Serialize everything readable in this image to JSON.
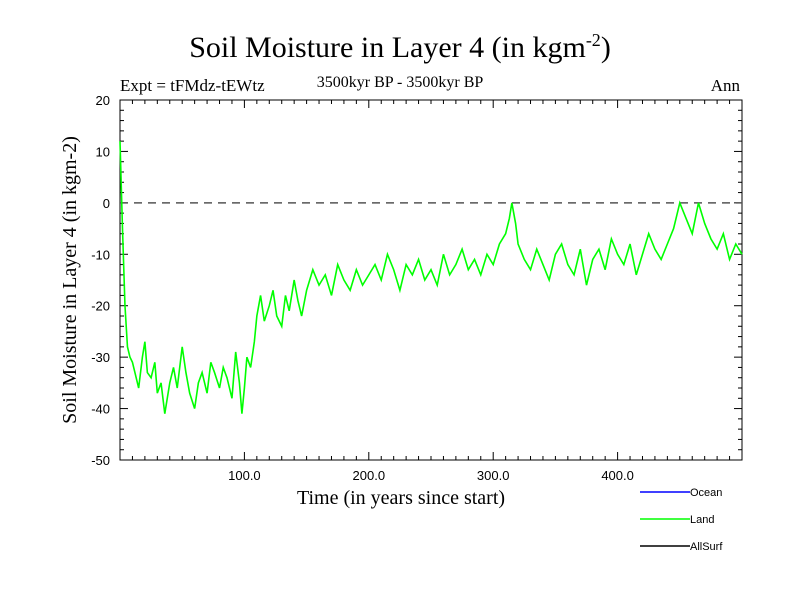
{
  "header": {
    "title": "Soil Moisture in Layer 4 (in kgm",
    "title_sup": "-2",
    "title_close": ")",
    "subtitle": "3500kyr BP - 3500kyr BP",
    "expt": "Expt = tFMdz-tEWtz",
    "season": "Ann"
  },
  "chart_data": {
    "type": "line",
    "title": "Soil Moisture in Layer 4 (in kgm-2)",
    "xlabel": "Time (in years since start)",
    "ylabel": "Soil Moisture in Layer 4 (in kgm-2)",
    "xlim": [
      0,
      500
    ],
    "ylim": [
      -50,
      20
    ],
    "x_ticks": [
      100,
      200,
      300,
      400
    ],
    "x_tick_labels": [
      "100.0",
      "200.0",
      "300.0",
      "400.0"
    ],
    "y_ticks": [
      -50,
      -40,
      -30,
      -20,
      -10,
      0,
      10,
      20
    ],
    "y_tick_labels": [
      "-50",
      "-40",
      "-30",
      "-20",
      "-10",
      "0",
      "10",
      "20"
    ],
    "reference_line": 0,
    "series": [
      {
        "name": "Ocean",
        "color": "#0000ff",
        "values": []
      },
      {
        "name": "Land",
        "color": "#00ff00",
        "x": [
          0,
          2,
          4,
          6,
          8,
          10,
          12,
          15,
          18,
          20,
          22,
          25,
          28,
          30,
          33,
          36,
          40,
          43,
          46,
          50,
          53,
          56,
          60,
          63,
          66,
          70,
          73,
          76,
          80,
          83,
          86,
          90,
          93,
          96,
          98,
          100,
          102,
          105,
          108,
          110,
          113,
          116,
          120,
          123,
          126,
          130,
          133,
          136,
          140,
          143,
          146,
          150,
          155,
          160,
          165,
          170,
          175,
          180,
          185,
          190,
          195,
          200,
          205,
          210,
          215,
          220,
          225,
          230,
          235,
          240,
          245,
          250,
          255,
          260,
          265,
          270,
          275,
          280,
          285,
          290,
          295,
          300,
          305,
          310,
          313,
          315,
          318,
          320,
          325,
          330,
          335,
          340,
          345,
          350,
          355,
          360,
          365,
          370,
          375,
          380,
          385,
          390,
          395,
          400,
          405,
          410,
          415,
          420,
          425,
          430,
          435,
          440,
          445,
          448,
          450,
          455,
          460,
          465,
          470,
          475,
          480,
          485,
          490,
          495,
          500
        ],
        "values": [
          12,
          -5,
          -20,
          -28,
          -30,
          -31,
          -33,
          -36,
          -30,
          -27,
          -33,
          -34,
          -31,
          -37,
          -35,
          -41,
          -35,
          -32,
          -36,
          -28,
          -33,
          -37,
          -40,
          -35,
          -33,
          -37,
          -31,
          -33,
          -36,
          -32,
          -34,
          -38,
          -29,
          -35,
          -41,
          -36,
          -30,
          -32,
          -27,
          -22,
          -18,
          -23,
          -20,
          -17,
          -22,
          -24,
          -18,
          -21,
          -15,
          -19,
          -22,
          -17,
          -13,
          -16,
          -14,
          -18,
          -12,
          -15,
          -17,
          -13,
          -16,
          -14,
          -12,
          -15,
          -10,
          -13,
          -17,
          -12,
          -14,
          -11,
          -15,
          -13,
          -16,
          -10,
          -14,
          -12,
          -9,
          -13,
          -11,
          -14,
          -10,
          -12,
          -8,
          -6,
          -3,
          0,
          -4,
          -8,
          -11,
          -13,
          -9,
          -12,
          -15,
          -10,
          -8,
          -12,
          -14,
          -9,
          -16,
          -11,
          -9,
          -13,
          -7,
          -10,
          -12,
          -8,
          -14,
          -10,
          -6,
          -9,
          -11,
          -8,
          -5,
          -2,
          0,
          -3,
          -6,
          0,
          -4,
          -7,
          -9,
          -6,
          -11,
          -8,
          -10
        ]
      },
      {
        "name": "AllSurf",
        "color": "#000000",
        "values": []
      }
    ]
  },
  "legend": [
    {
      "label": "Ocean",
      "color": "#0000ff"
    },
    {
      "label": "Land",
      "color": "#00ff00"
    },
    {
      "label": "AllSurf",
      "color": "#000000"
    }
  ]
}
